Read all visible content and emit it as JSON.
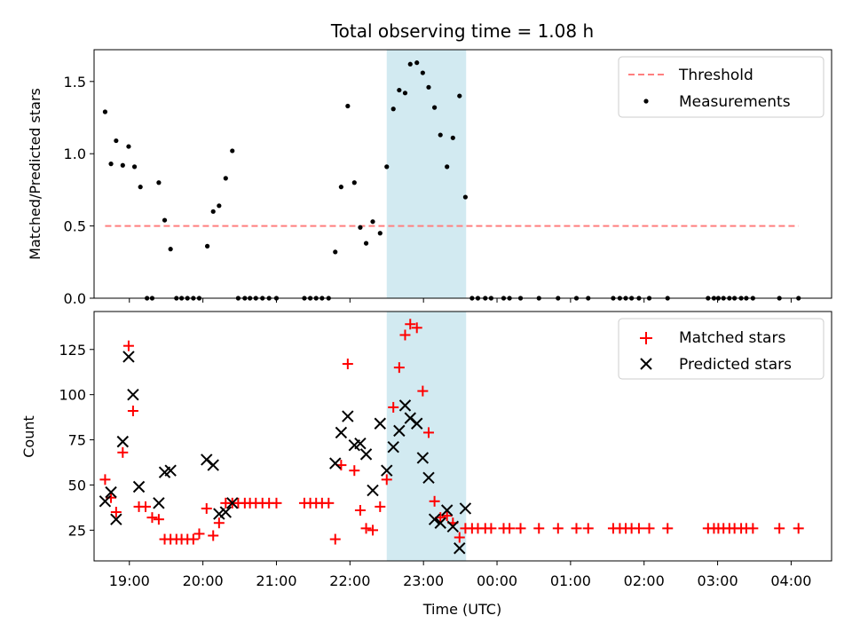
{
  "chart_data": [
    {
      "type": "scatter",
      "title": "Total observing time = 1.08 h",
      "ylabel": "Matched/Predicted stars",
      "xlabel": "",
      "xlim": [
        18.52,
        28.55
      ],
      "ylim": [
        0,
        1.72
      ],
      "xticks": [
        19,
        20,
        21,
        22,
        23,
        24,
        25,
        26,
        27,
        28
      ],
      "yticks": [
        0,
        0.5,
        1.0,
        1.5
      ],
      "ytick_labels": [
        "0.0",
        "0.5",
        "1.0",
        "1.5"
      ],
      "grid": false,
      "legend": "upper right",
      "highlight_span": [
        22.5,
        23.58
      ],
      "threshold": {
        "name": "Threshold",
        "y": 0.5,
        "x": [
          18.67,
          28.1
        ],
        "color": "#ff7f7f"
      },
      "series": [
        {
          "name": "Measurements",
          "color": "#000000",
          "x": [
            18.67,
            18.75,
            18.82,
            18.91,
            18.99,
            19.07,
            19.15,
            19.24,
            19.31,
            19.4,
            19.48,
            19.56,
            19.64,
            19.71,
            19.79,
            19.87,
            19.95,
            20.06,
            20.14,
            20.22,
            20.31,
            20.4,
            20.48,
            20.57,
            20.64,
            20.72,
            20.81,
            20.9,
            21.0,
            21.38,
            21.46,
            21.54,
            21.62,
            21.71,
            21.8,
            21.88,
            21.97,
            22.06,
            22.14,
            22.22,
            22.31,
            22.41,
            22.5,
            22.59,
            22.67,
            22.75,
            22.82,
            22.91,
            22.99,
            23.07,
            23.15,
            23.23,
            23.32,
            23.4,
            23.49,
            23.57,
            23.66,
            23.74,
            23.84,
            23.92,
            24.09,
            24.17,
            24.32,
            24.57,
            24.83,
            25.08,
            25.24,
            25.58,
            25.67,
            25.75,
            25.83,
            25.93,
            26.07,
            26.32,
            26.87,
            26.95,
            27.01,
            27.08,
            27.16,
            27.23,
            27.32,
            27.39,
            27.48,
            27.84,
            28.1
          ],
          "y": [
            1.29,
            0.93,
            1.09,
            0.92,
            1.05,
            0.91,
            0.77,
            0,
            0,
            0.8,
            0.54,
            0.34,
            0,
            0,
            0,
            0,
            0,
            0.36,
            0.6,
            0.64,
            0.83,
            1.02,
            0,
            0,
            0,
            0,
            0,
            0,
            0,
            0,
            0,
            0,
            0,
            0,
            0.32,
            0.77,
            1.33,
            0.8,
            0.49,
            0.38,
            0.53,
            0.45,
            0.91,
            1.31,
            1.44,
            1.42,
            1.62,
            1.63,
            1.56,
            1.46,
            1.32,
            1.13,
            0.91,
            1.11,
            1.4,
            0.7,
            0,
            0,
            0,
            0,
            0,
            0,
            0,
            0,
            0,
            0,
            0,
            0,
            0,
            0,
            0,
            0,
            0,
            0,
            0,
            0,
            0,
            0,
            0,
            0,
            0,
            0,
            0,
            0,
            0
          ]
        }
      ]
    },
    {
      "type": "scatter",
      "title": "",
      "ylabel": "Count",
      "xlabel": "Time (UTC)",
      "xlim": [
        18.52,
        28.55
      ],
      "ylim": [
        8,
        146
      ],
      "xticks": [
        19,
        20,
        21,
        22,
        23,
        24,
        25,
        26,
        27,
        28
      ],
      "xtick_labels": [
        "19:00",
        "20:00",
        "21:00",
        "22:00",
        "23:00",
        "00:00",
        "01:00",
        "02:00",
        "03:00",
        "04:00"
      ],
      "yticks": [
        25,
        50,
        75,
        100,
        125
      ],
      "grid": false,
      "legend": "upper right",
      "highlight_span": [
        22.5,
        23.58
      ],
      "series": [
        {
          "name": "Matched stars",
          "marker": "+",
          "color": "#ff0000",
          "x": [
            18.67,
            18.75,
            18.82,
            18.91,
            18.99,
            19.05,
            19.13,
            19.22,
            19.31,
            19.4,
            19.48,
            19.56,
            19.64,
            19.71,
            19.79,
            19.87,
            19.95,
            20.05,
            20.14,
            20.22,
            20.31,
            20.4,
            20.48,
            20.57,
            20.64,
            20.72,
            20.81,
            20.9,
            21.0,
            21.38,
            21.46,
            21.54,
            21.62,
            21.71,
            21.8,
            21.88,
            21.97,
            22.06,
            22.14,
            22.22,
            22.31,
            22.41,
            22.5,
            22.59,
            22.67,
            22.75,
            22.82,
            22.91,
            22.99,
            23.07,
            23.15,
            23.23,
            23.32,
            23.4,
            23.49,
            23.57,
            23.66,
            23.74,
            23.84,
            23.92,
            24.09,
            24.17,
            24.32,
            24.57,
            24.83,
            25.08,
            25.24,
            25.58,
            25.67,
            25.75,
            25.83,
            25.93,
            26.07,
            26.32,
            26.87,
            26.95,
            27.01,
            27.08,
            27.16,
            27.23,
            27.32,
            27.39,
            27.48,
            27.84,
            28.1
          ],
          "y": [
            53,
            43,
            35,
            68,
            127,
            91,
            38,
            38,
            32,
            31,
            20,
            20,
            20,
            20,
            20,
            20,
            23,
            37,
            22,
            29,
            40,
            40,
            40,
            40,
            40,
            40,
            40,
            40,
            40,
            40,
            40,
            40,
            40,
            40,
            20,
            61,
            117,
            58,
            36,
            26,
            25,
            38,
            53,
            93,
            115,
            133,
            139,
            137,
            102,
            79,
            41,
            32,
            33,
            29,
            21,
            26,
            26,
            26,
            26,
            26,
            26,
            26,
            26,
            26,
            26,
            26,
            26,
            26,
            26,
            26,
            26,
            26,
            26,
            26,
            26,
            26,
            26,
            26,
            26,
            26,
            26,
            26,
            26,
            26,
            26
          ]
        },
        {
          "name": "Predicted stars",
          "marker": "x",
          "color": "#000000",
          "x": [
            18.67,
            18.75,
            18.82,
            18.91,
            18.99,
            19.05,
            19.13,
            19.4,
            19.48,
            19.56,
            20.05,
            20.14,
            20.22,
            20.31,
            20.4,
            21.8,
            21.88,
            21.97,
            22.06,
            22.14,
            22.22,
            22.31,
            22.41,
            22.5,
            22.59,
            22.67,
            22.75,
            22.82,
            22.91,
            22.99,
            23.07,
            23.15,
            23.23,
            23.32,
            23.4,
            23.49,
            23.57
          ],
          "y": [
            41,
            46,
            31,
            74,
            121,
            100,
            49,
            40,
            57,
            58,
            64,
            61,
            34,
            35,
            40,
            62,
            79,
            88,
            72,
            73,
            67,
            47,
            84,
            58,
            71,
            80,
            94,
            87,
            84,
            65,
            54,
            31,
            29,
            36,
            27,
            15,
            37
          ]
        }
      ]
    }
  ]
}
